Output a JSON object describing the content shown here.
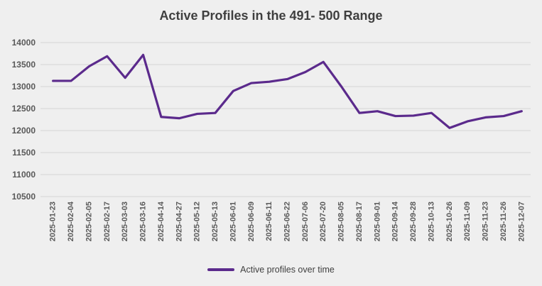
{
  "title": "Active Profiles in the 491- 500 Range",
  "legend": {
    "label": "Active profiles over time"
  },
  "colors": {
    "background": "#EFEFEF",
    "gridline": "#D9D9D9",
    "line": "#5B2A8C",
    "title_text": "#3F3F3F",
    "axis_text": "#595959"
  },
  "chart_data": {
    "type": "line",
    "title": "Active Profiles in the 491- 500 Range",
    "xlabel": "",
    "ylabel": "",
    "ylim": [
      10500,
      14000
    ],
    "yticks": [
      14000,
      13500,
      13000,
      12500,
      12000,
      11500,
      11000,
      10500
    ],
    "grid": true,
    "legend_position": "bottom",
    "categories": [
      "2025-01-23",
      "2025-02-04",
      "2025-02-05",
      "2025-02-17",
      "2025-03-03",
      "2025-03-16",
      "2025-04-14",
      "2025-04-27",
      "2025-05-12",
      "2025-05-13",
      "2025-06-01",
      "2025-06-09",
      "2025-06-11",
      "2025-06-22",
      "2025-07-06",
      "2025-07-20",
      "2025-08-05",
      "2025-08-17",
      "2025-09-01",
      "2025-09-14",
      "2025-09-28",
      "2025-10-13",
      "2025-10-26",
      "2025-11-09",
      "2025-11-23",
      "2025-11-26",
      "2025-12-07"
    ],
    "series": [
      {
        "name": "Active profiles over time",
        "values": [
          13130,
          13130,
          13460,
          13690,
          13200,
          13720,
          12310,
          12280,
          12380,
          12400,
          12900,
          13080,
          13110,
          13170,
          13330,
          13560,
          13000,
          12400,
          12440,
          12330,
          12340,
          12400,
          12060,
          12210,
          12300,
          12330,
          12440
        ]
      }
    ]
  }
}
